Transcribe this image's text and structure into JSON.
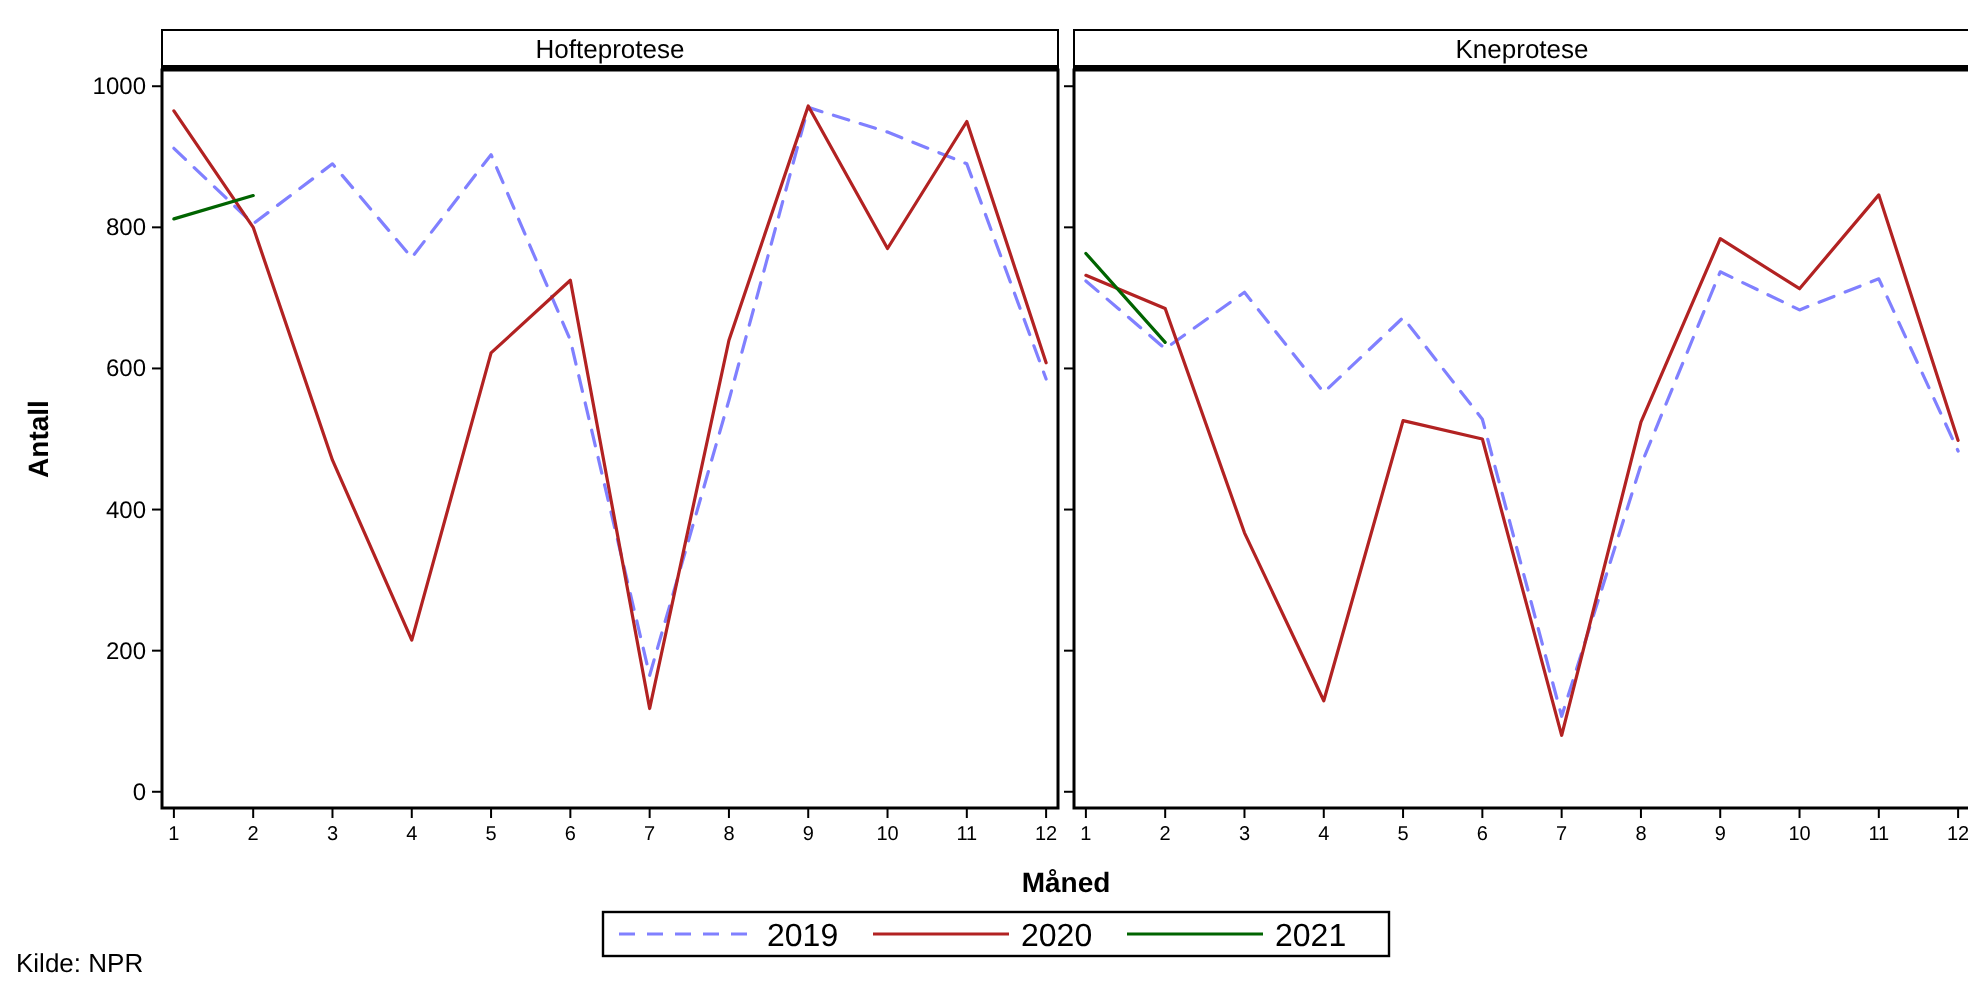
{
  "chart_data": [
    {
      "type": "line",
      "title": "Hofteprotese",
      "xlabel": "Måned",
      "ylabel": "Antall",
      "x": [
        1,
        2,
        3,
        4,
        5,
        6,
        7,
        8,
        9,
        10,
        11,
        12
      ],
      "xlim": [
        0.85,
        12.15
      ],
      "xticks": [
        1,
        2,
        3,
        4,
        5,
        6,
        7,
        8,
        9,
        10,
        11,
        12
      ],
      "ylim": [
        -23,
        1023
      ],
      "yticks": [
        0,
        200,
        400,
        600,
        800,
        1000
      ],
      "legend": "bottom",
      "annotations": [
        "Kilde: NPR"
      ],
      "series": [
        {
          "name": "2019",
          "color": "#8080ff",
          "line_style": "dashed",
          "values": [
            912,
            805,
            890,
            757,
            903,
            640,
            165,
            555,
            970,
            935,
            890,
            585
          ]
        },
        {
          "name": "2020",
          "color": "#b22222",
          "line_style": "solid",
          "values": [
            965,
            800,
            470,
            215,
            622,
            725,
            118,
            640,
            972,
            770,
            950,
            608
          ]
        },
        {
          "name": "2021",
          "color": "#006400",
          "line_style": "solid",
          "values": [
            812,
            845,
            null,
            null,
            null,
            null,
            null,
            null,
            null,
            null,
            null,
            null
          ]
        }
      ]
    },
    {
      "type": "line",
      "title": "Kneprotese",
      "x": [
        1,
        2,
        3,
        4,
        5,
        6,
        7,
        8,
        9,
        10,
        11,
        12
      ],
      "xlim": [
        0.85,
        12.15
      ],
      "xticks": [
        1,
        2,
        3,
        4,
        5,
        6,
        7,
        8,
        9,
        10,
        11,
        12
      ],
      "ylim": [
        -23,
        1023
      ],
      "yticks": [
        0,
        200,
        400,
        600,
        800,
        1000
      ],
      "tick_labels": "x",
      "series": [
        {
          "color": "#8080ff",
          "line_style": "dashed",
          "values": [
            724,
            628,
            708,
            566,
            672,
            528,
            107,
            463,
            737,
            683,
            727,
            483
          ]
        },
        {
          "color": "#b22222",
          "line_style": "solid",
          "values": [
            732,
            685,
            367,
            129,
            526,
            500,
            80,
            524,
            784,
            713,
            846,
            498
          ]
        },
        {
          "color": "#006400",
          "line_style": "solid",
          "values": [
            763,
            637,
            null,
            null,
            null,
            null,
            null,
            null,
            null,
            null,
            null,
            null
          ]
        }
      ]
    }
  ]
}
